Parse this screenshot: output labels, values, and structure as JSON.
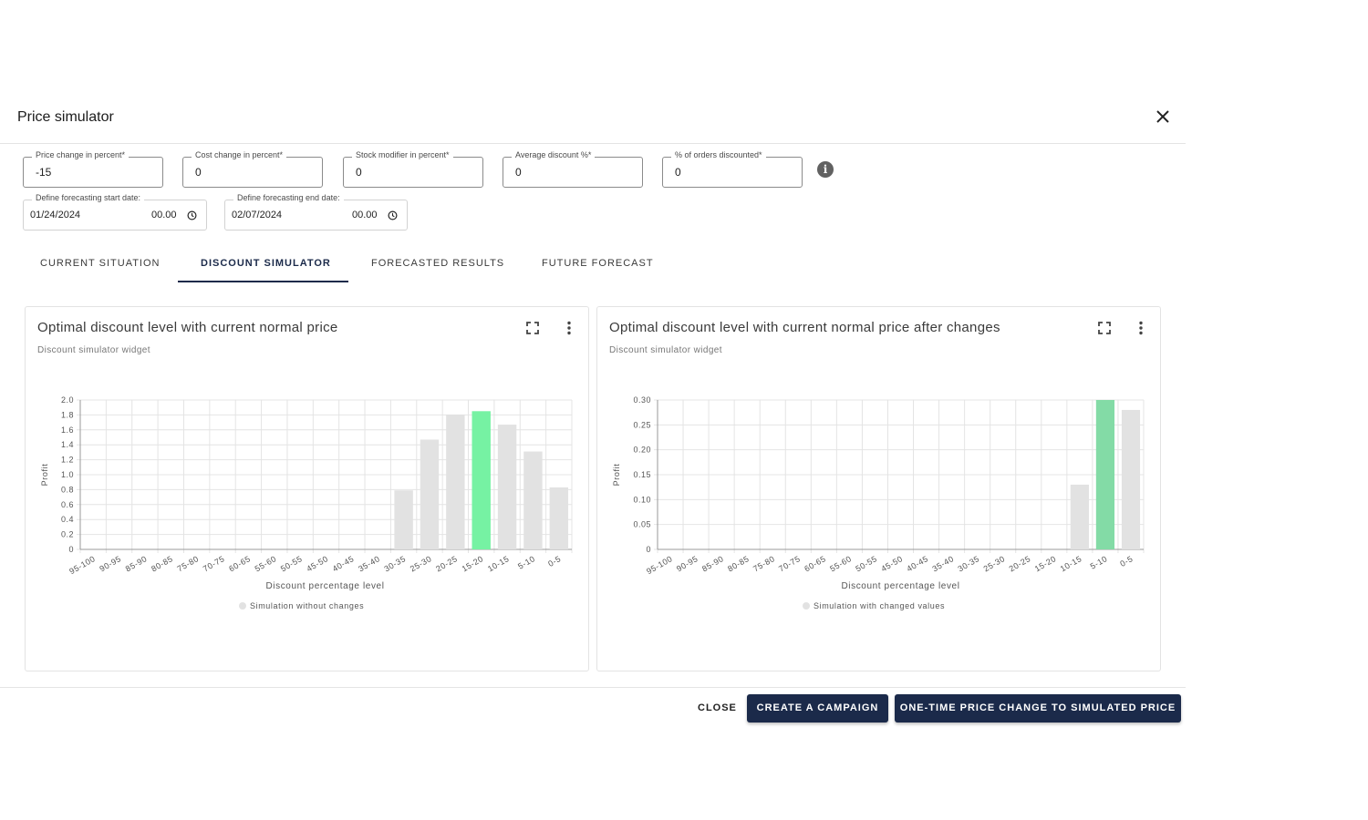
{
  "dialog": {
    "title": "Price simulator"
  },
  "fields": [
    {
      "label": "Price change in percent*",
      "value": "-15"
    },
    {
      "label": "Cost change in percent*",
      "value": "0"
    },
    {
      "label": "Stock modifier in percent*",
      "value": "0"
    },
    {
      "label": "Average discount %*",
      "value": "0"
    },
    {
      "label": "% of orders discounted*",
      "value": "0"
    }
  ],
  "dates": [
    {
      "label": "Define forecasting start date:",
      "date": "01/24/2024",
      "time": "00.00"
    },
    {
      "label": "Define forecasting end date:",
      "date": "02/07/2024",
      "time": "00.00"
    }
  ],
  "tabs": [
    {
      "label": "CURRENT SITUATION",
      "active": false
    },
    {
      "label": "DISCOUNT SIMULATOR",
      "active": true
    },
    {
      "label": "FORECASTED RESULTS",
      "active": false
    },
    {
      "label": "FUTURE FORECAST",
      "active": false
    }
  ],
  "cards": [
    {
      "title": "Optimal discount level with current normal price",
      "subtitle": "Discount simulator widget"
    },
    {
      "title": "Optimal discount level with current normal price after changes",
      "subtitle": "Discount simulator widget"
    }
  ],
  "footer": {
    "close_label": "CLOSE",
    "campaign_label": "CREATE A CAMPAIGN",
    "price_change_label": "ONE-TIME PRICE CHANGE TO SIMULATED PRICE"
  },
  "colors": {
    "primary": "#1b2a4a",
    "bar": "#e2e2e2",
    "highlight_left": "#76f2a3",
    "highlight_right": "#83dba6"
  },
  "chart_data": [
    {
      "type": "bar",
      "categories": [
        "95-100",
        "90-95",
        "85-90",
        "80-85",
        "75-80",
        "70-75",
        "60-65",
        "55-60",
        "50-55",
        "45-50",
        "40-45",
        "35-40",
        "30-35",
        "25-30",
        "20-25",
        "15-20",
        "10-15",
        "5-10",
        "0-5"
      ],
      "series": [
        {
          "name": "Simulation without changes",
          "values": [
            0,
            0,
            0,
            0,
            0,
            0,
            0,
            0,
            0,
            0,
            0,
            0,
            0.79,
            1.47,
            1.8,
            1.85,
            1.67,
            1.31,
            0.83
          ]
        }
      ],
      "highlight_index": 15,
      "xlabel": "Discount percentage level",
      "ylabel": "Profit",
      "ylim": [
        0,
        2.0
      ],
      "yticks": [
        "0",
        "0.2",
        "0.4",
        "0.6",
        "0.8",
        "1.0",
        "1.2",
        "1.4",
        "1.6",
        "1.8",
        "2.0"
      ],
      "grid": true,
      "legend": "bottom"
    },
    {
      "type": "bar",
      "categories": [
        "95-100",
        "90-95",
        "85-90",
        "80-85",
        "75-80",
        "70-75",
        "60-65",
        "55-60",
        "50-55",
        "45-50",
        "40-45",
        "35-40",
        "30-35",
        "25-30",
        "20-25",
        "15-20",
        "10-15",
        "5-10",
        "0-5"
      ],
      "series": [
        {
          "name": "Simulation with changed values",
          "values": [
            0,
            0,
            0,
            0,
            0,
            0,
            0,
            0,
            0,
            0,
            0,
            0,
            0,
            0,
            0,
            0,
            0.13,
            0.3,
            0.28
          ]
        }
      ],
      "highlight_index": 17,
      "xlabel": "Discount percentage level",
      "ylabel": "Profit",
      "ylim": [
        0,
        0.3
      ],
      "yticks": [
        "0",
        "0.05",
        "0.10",
        "0.15",
        "0.20",
        "0.25",
        "0.30"
      ],
      "grid": true,
      "legend": "bottom"
    }
  ]
}
